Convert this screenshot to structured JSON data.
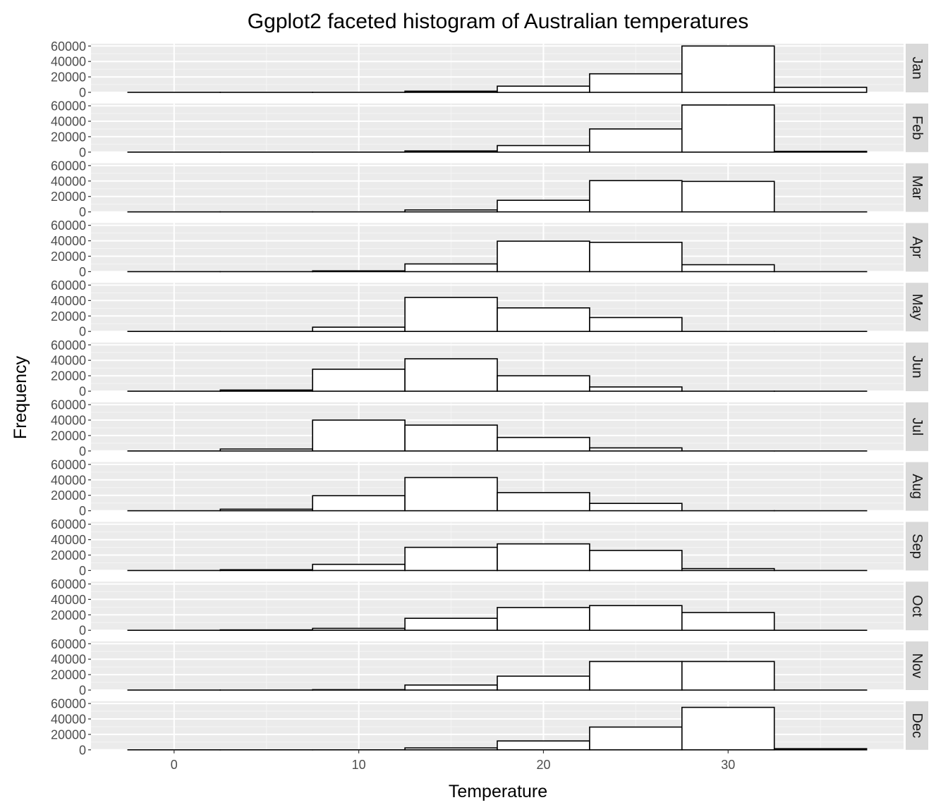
{
  "chart_data": {
    "type": "bar",
    "title": "Ggplot2 faceted histogram of Australian temperatures",
    "xlabel": "Temperature",
    "ylabel": "Frequency",
    "xlim": [
      -4.5,
      39.5
    ],
    "ylim": [
      0,
      63000
    ],
    "x_ticks": [
      0,
      10,
      20,
      30
    ],
    "y_ticks": [
      0,
      20000,
      40000,
      60000
    ],
    "bin_width": 5,
    "bins": [
      [
        -2.5,
        2.5
      ],
      [
        2.5,
        7.5
      ],
      [
        7.5,
        12.5
      ],
      [
        12.5,
        17.5
      ],
      [
        17.5,
        22.5
      ],
      [
        22.5,
        27.5
      ],
      [
        27.5,
        32.5
      ],
      [
        32.5,
        37.5
      ]
    ],
    "bin_centers": [
      0,
      5,
      10,
      15,
      20,
      25,
      30,
      35
    ],
    "grid": true,
    "panel_background": "#ebebeb",
    "strip_background": "#d9d9d9",
    "bar_fill": "#ffffff",
    "bar_outline": "#000000",
    "facets": [
      {
        "label": "Jan",
        "values": [
          0,
          0,
          0,
          1500,
          8000,
          24000,
          60000,
          6500
        ]
      },
      {
        "label": "Feb",
        "values": [
          0,
          0,
          0,
          1500,
          8500,
          30000,
          61000,
          1000
        ]
      },
      {
        "label": "Mar",
        "values": [
          0,
          0,
          0,
          2500,
          15000,
          40500,
          39500,
          0
        ]
      },
      {
        "label": "Apr",
        "values": [
          0,
          0,
          1000,
          10000,
          39500,
          38000,
          9000,
          0
        ]
      },
      {
        "label": "May",
        "values": [
          0,
          0,
          5500,
          44000,
          30500,
          18000,
          0,
          0
        ]
      },
      {
        "label": "Jun",
        "values": [
          0,
          1500,
          28500,
          42000,
          20000,
          5500,
          0,
          0
        ]
      },
      {
        "label": "Jul",
        "values": [
          0,
          2500,
          40000,
          33500,
          17500,
          4000,
          0,
          0
        ]
      },
      {
        "label": "Aug",
        "values": [
          0,
          2000,
          19500,
          43000,
          23500,
          9500,
          0,
          0
        ]
      },
      {
        "label": "Sep",
        "values": [
          0,
          1000,
          8000,
          30000,
          34500,
          26000,
          2500,
          0
        ]
      },
      {
        "label": "Oct",
        "values": [
          0,
          500,
          2500,
          15500,
          29500,
          32000,
          23000,
          0
        ]
      },
      {
        "label": "Nov",
        "values": [
          0,
          0,
          500,
          6500,
          18000,
          37000,
          37000,
          0
        ]
      },
      {
        "label": "Dec",
        "values": [
          0,
          0,
          0,
          2500,
          11500,
          29500,
          55000,
          1500
        ]
      }
    ]
  }
}
